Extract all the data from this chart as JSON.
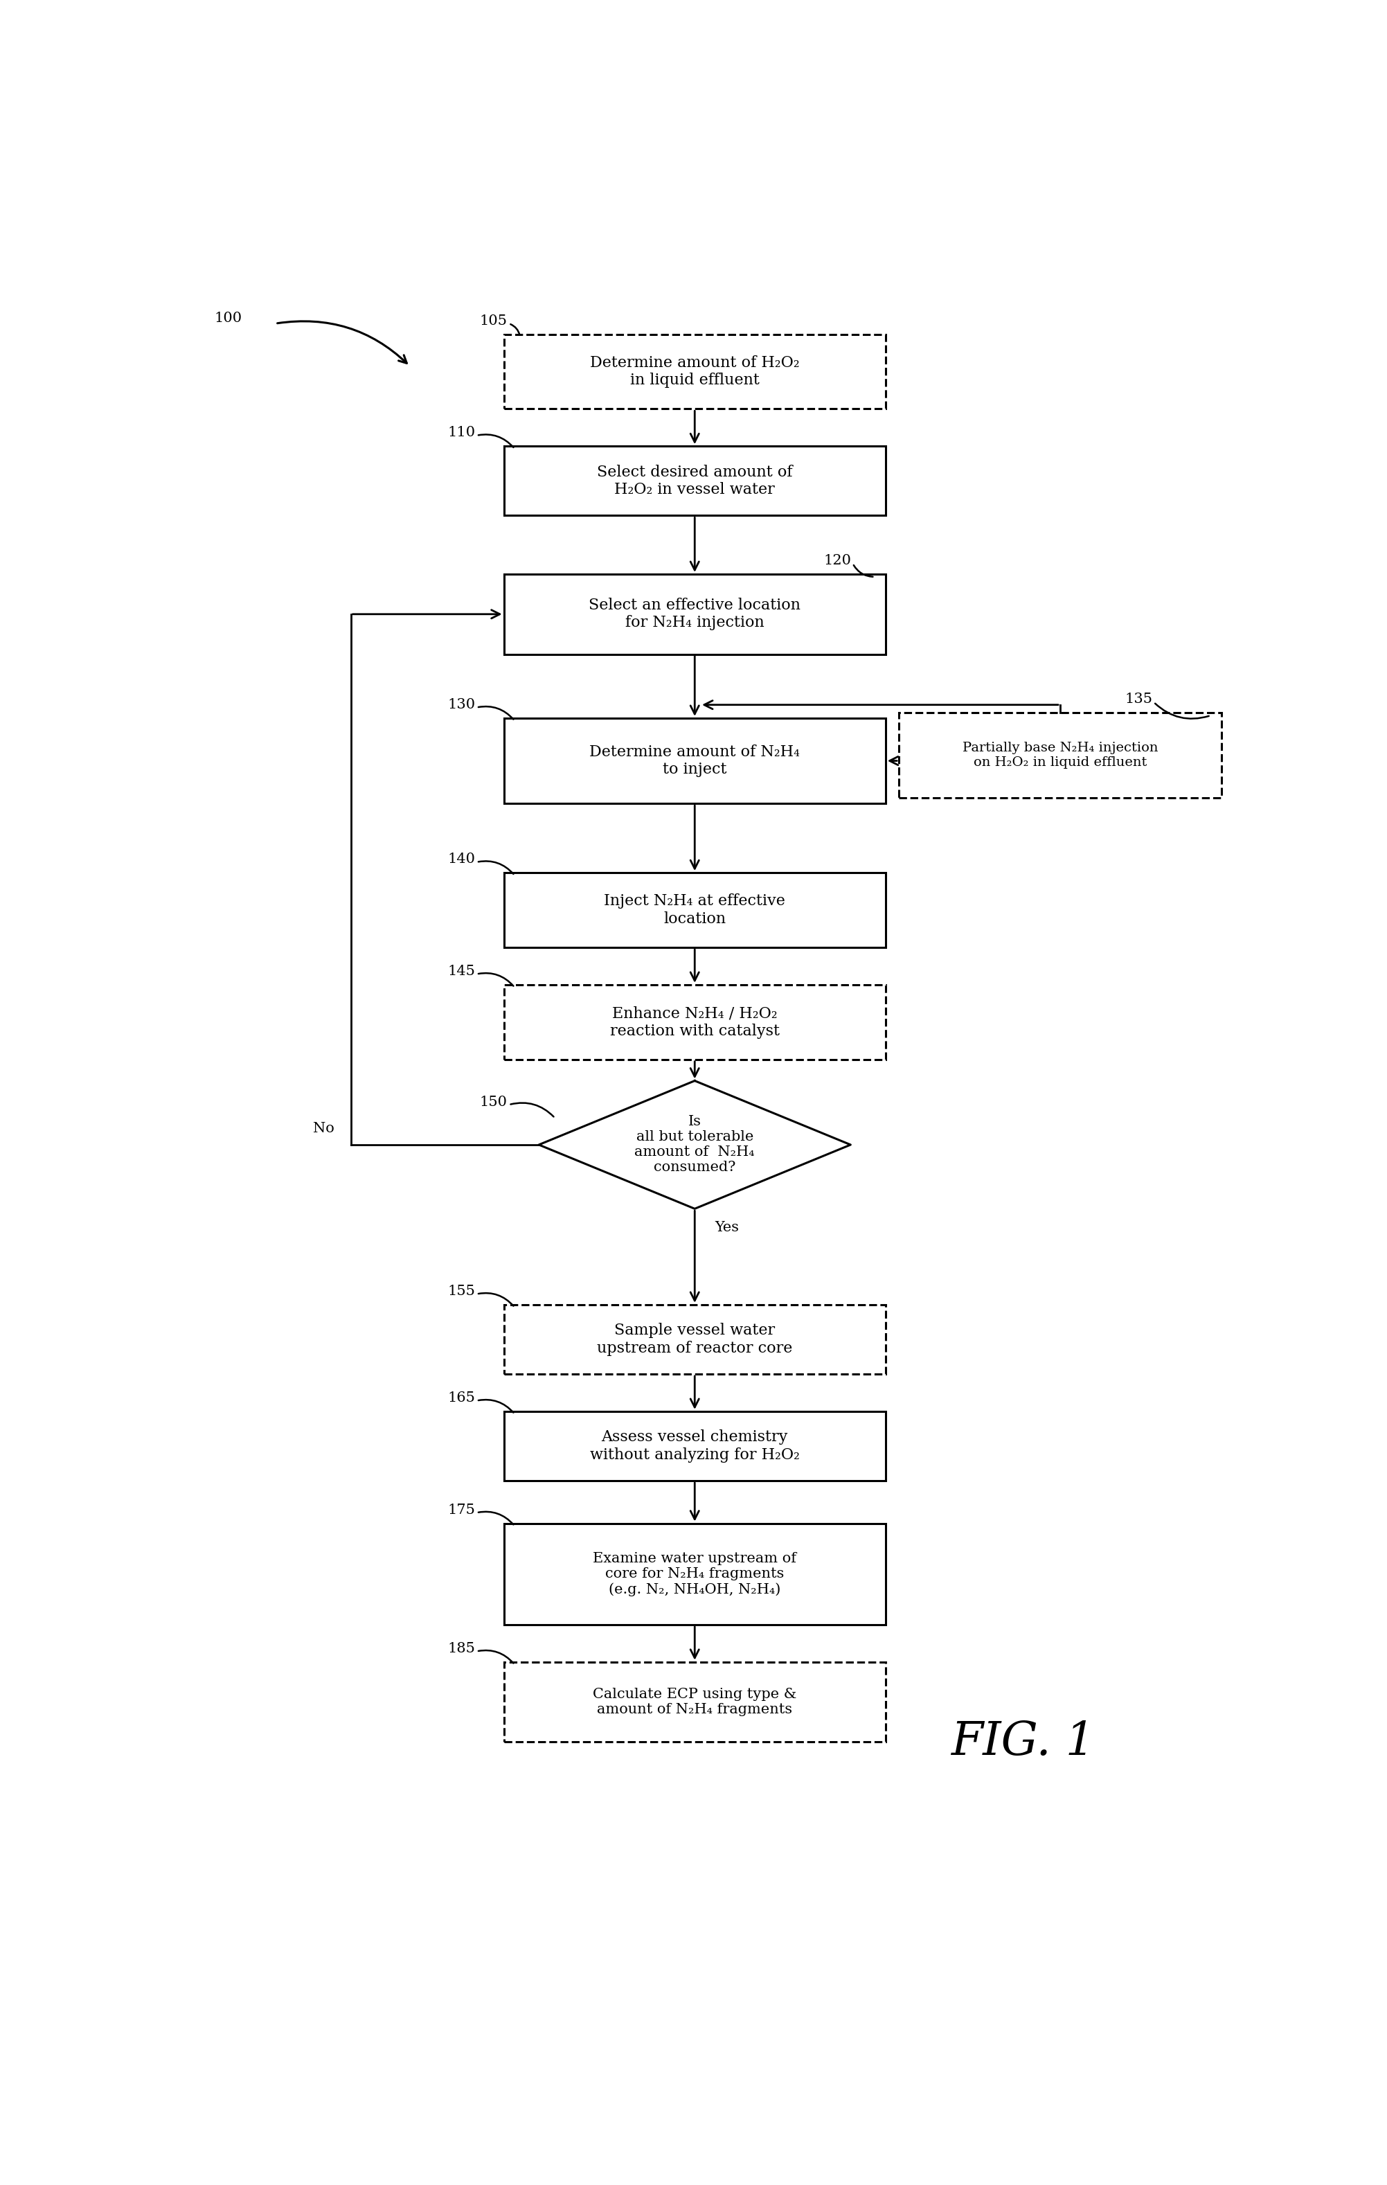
{
  "fig_width": 20.03,
  "fig_height": 31.55,
  "bg_color": "#ffffff",
  "title": "FIG. 1",
  "box_105_text": "Determine amount of H₂O₂\nin liquid effluent",
  "box_110_text": "Select desired amount of\nH₂O₂ in vessel water",
  "box_120_text": "Select an effective location\nfor N₂H₄ injection",
  "box_130_text": "Determine amount of N₂H₄\nto inject",
  "box_135_text": "Partially base N₂H₄ injection\non H₂O₂ in liquid effluent",
  "box_140_text": "Inject N₂H₄ at effective\nlocation",
  "box_145_text": "Enhance N₂H₄ / H₂O₂\nreaction with catalyst",
  "box_150_text": "Is\nall but tolerable\namount of  N₂H₄\nconsumed?",
  "box_155_text": "Sample vessel water\nupstream of reactor core",
  "box_165_text": "Assess vessel chemistry\nwithout analyzing for H₂O₂",
  "box_175_text": "Examine water upstream of\ncore for N₂H₄ fragments\n(e.g. N₂, NH₄OH, N₂H₄)",
  "box_185_text": "Calculate ECP using type &\namount of N₂H₄ fragments",
  "yes_label": "Yes",
  "no_label": "No",
  "lbl_100": "100",
  "lbl_105": "105",
  "lbl_110": "110",
  "lbl_120": "120",
  "lbl_130": "130",
  "lbl_135": "135",
  "lbl_140": "140",
  "lbl_145": "145",
  "lbl_150": "150",
  "lbl_155": "155",
  "lbl_165": "165",
  "lbl_175": "175",
  "lbl_185": "185"
}
